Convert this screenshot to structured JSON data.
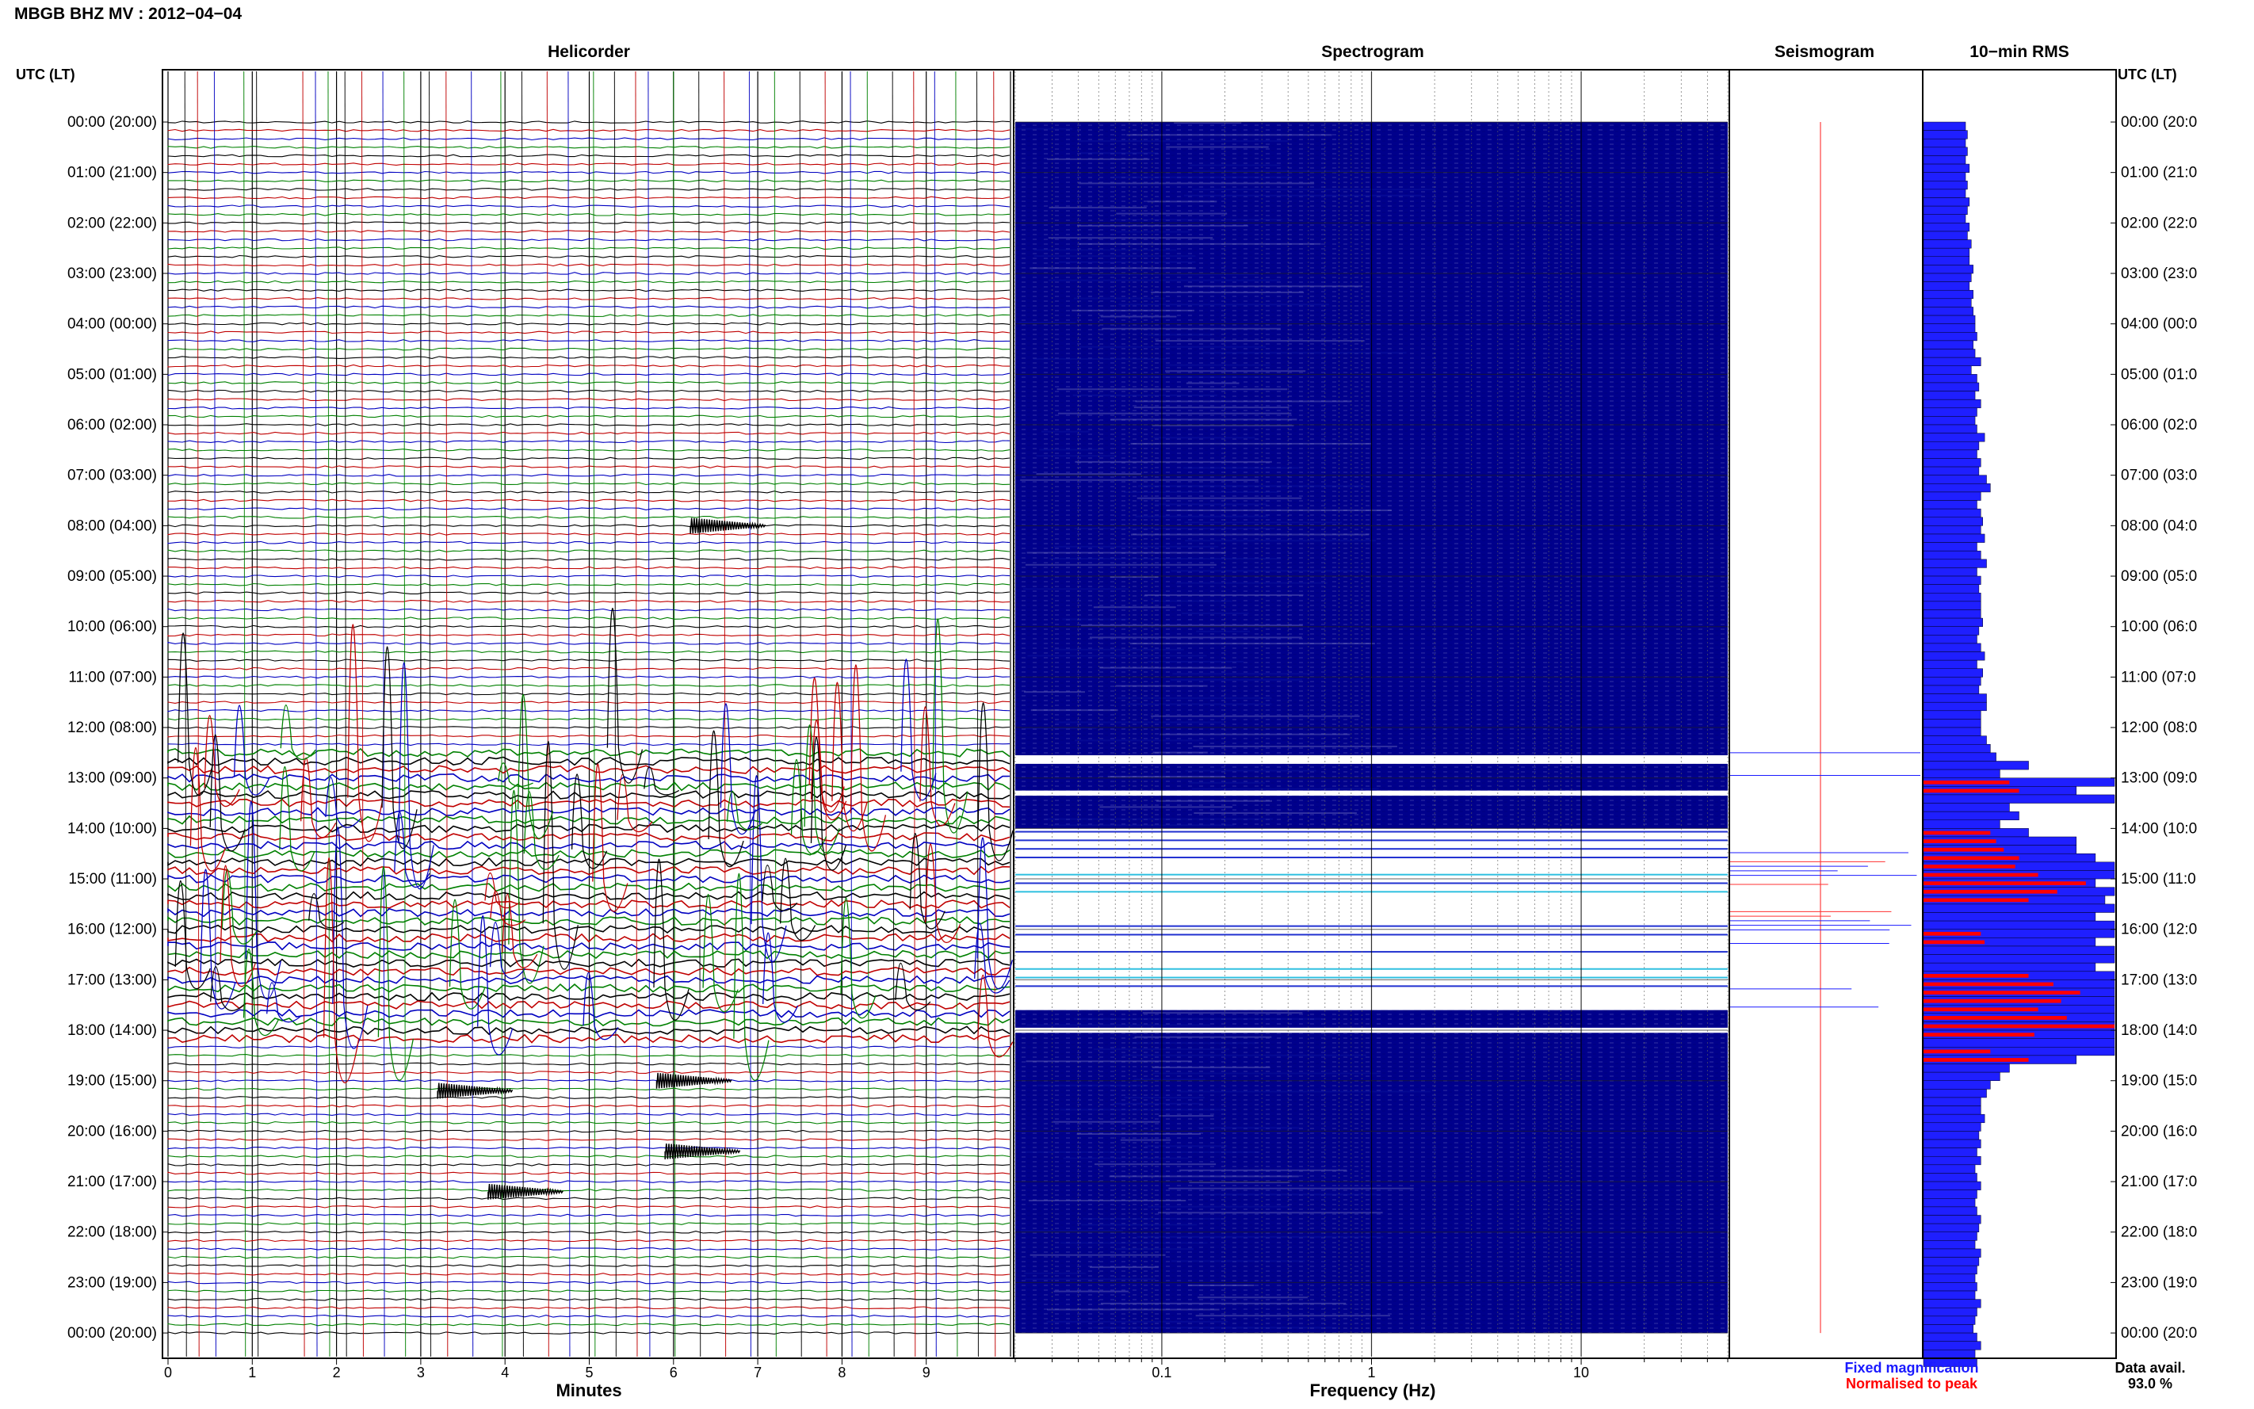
{
  "header": {
    "station_title": "MBGB BHZ MV : 2012−04−04"
  },
  "panels": {
    "helicorder": "Helicorder",
    "spectrogram": "Spectrogram",
    "seismogram": "Seismogram",
    "rms": "10−min RMS"
  },
  "axes": {
    "time_label_left": "UTC (LT)",
    "time_label_right": "UTC (LT)",
    "helicorder_xlabel": "Minutes",
    "spectrogram_xlabel": "Frequency (Hz)"
  },
  "legend": {
    "fixed_magnification": "Fixed magnification",
    "normalised_to_peak": "Normalised to peak",
    "data_avail_label": "Data avail.",
    "data_avail_value": "93.0 %"
  },
  "colors": {
    "trace_cycle": [
      "#000000",
      "#c00000",
      "#0000c0",
      "#008000"
    ],
    "rms_fixed": "#1f1fff",
    "rms_normalised": "#ff0000",
    "legend_blue": "#1a1aff",
    "legend_red": "#ff0000"
  },
  "chart_data": {
    "type": "heatmap",
    "time_ticks": [
      "00:00 (20:00)",
      "01:00 (21:00)",
      "02:00 (22:00)",
      "03:00 (23:00)",
      "04:00 (00:00)",
      "05:00 (01:00)",
      "06:00 (02:00)",
      "07:00 (03:00)",
      "08:00 (04:00)",
      "09:00 (05:00)",
      "10:00 (06:00)",
      "11:00 (07:00)",
      "12:00 (08:00)",
      "13:00 (09:00)",
      "14:00 (10:00)",
      "15:00 (11:00)",
      "16:00 (12:00)",
      "17:00 (13:00)",
      "18:00 (14:00)",
      "19:00 (15:00)",
      "20:00 (16:00)",
      "21:00 (17:00)",
      "22:00 (18:00)",
      "23:00 (19:00)",
      "00:00 (20:00)"
    ],
    "time_ticks_right": [
      "00:00 (20:0",
      "01:00 (21:0",
      "02:00 (22:0",
      "03:00 (23:0",
      "04:00 (00:0",
      "05:00 (01:0",
      "06:00 (02:0",
      "07:00 (03:0",
      "08:00 (04:0",
      "09:00 (05:0",
      "10:00 (06:0",
      "11:00 (07:0",
      "12:00 (08:0",
      "13:00 (09:0",
      "14:00 (10:0",
      "15:00 (11:0",
      "16:00 (12:0",
      "17:00 (13:0",
      "18:00 (14:0",
      "19:00 (15:0",
      "20:00 (16:0",
      "21:00 (17:0",
      "22:00 (18:0",
      "23:00 (19:0",
      "00:00 (20:0"
    ],
    "helicorder": {
      "xlim": [
        0,
        10
      ],
      "xticks": [
        "0",
        "1",
        "2",
        "3",
        "4",
        "5",
        "6",
        "7",
        "8",
        "9"
      ],
      "lines_per_hour": 6
    },
    "spectrogram": {
      "xscale": "log",
      "xlim": [
        0.02,
        50
      ],
      "xticks": [
        {
          "value": 0.1,
          "label": "0.1"
        },
        {
          "value": 1,
          "label": "1"
        },
        {
          "value": 10,
          "label": "10"
        }
      ]
    },
    "gap_hours": [
      [
        12.55,
        12.72
      ],
      [
        13.25,
        13.35
      ],
      [
        14.0,
        17.6
      ],
      [
        17.95,
        18.05
      ]
    ],
    "rms_fixed": [
      0.22,
      0.23,
      0.22,
      0.23,
      0.22,
      0.24,
      0.22,
      0.23,
      0.22,
      0.24,
      0.23,
      0.22,
      0.24,
      0.23,
      0.25,
      0.24,
      0.24,
      0.26,
      0.25,
      0.24,
      0.26,
      0.25,
      0.26,
      0.27,
      0.27,
      0.28,
      0.26,
      0.27,
      0.3,
      0.25,
      0.28,
      0.29,
      0.27,
      0.3,
      0.28,
      0.27,
      0.28,
      0.32,
      0.29,
      0.28,
      0.3,
      0.29,
      0.33,
      0.35,
      0.3,
      0.28,
      0.3,
      0.31,
      0.3,
      0.32,
      0.28,
      0.3,
      0.33,
      0.28,
      0.3,
      0.29,
      0.3,
      0.3,
      0.3,
      0.31,
      0.29,
      0.28,
      0.3,
      0.32,
      0.28,
      0.31,
      0.3,
      0.29,
      0.33,
      0.33,
      0.3,
      0.3,
      0.3,
      0.33,
      0.35,
      0.38,
      0.55,
      0.4,
      1.0,
      0.8,
      1.0,
      0.45,
      0.5,
      0.4,
      0.55,
      0.8,
      0.8,
      0.9,
      1.0,
      1.0,
      0.9,
      1.0,
      0.95,
      1.0,
      0.9,
      1.0,
      1.0,
      0.9,
      1.0,
      1.0,
      0.9,
      1.0,
      1.0,
      1.0,
      1.0,
      1.0,
      1.0,
      1.0,
      1.0,
      1.0,
      1.0,
      0.8,
      0.45,
      0.4,
      0.35,
      0.33,
      0.3,
      0.3,
      0.32,
      0.3,
      0.29,
      0.3,
      0.28,
      0.3,
      0.27,
      0.28,
      0.3,
      0.28,
      0.27,
      0.28,
      0.3,
      0.29,
      0.28,
      0.27,
      0.3,
      0.29,
      0.28,
      0.27,
      0.28,
      0.27,
      0.3,
      0.28,
      0.27,
      0.26,
      0.28,
      0.3,
      0.27,
      0.28
    ],
    "rms_normalised": [
      0,
      0,
      0,
      0,
      0,
      0,
      0,
      0,
      0,
      0,
      0,
      0,
      0,
      0,
      0,
      0,
      0,
      0,
      0,
      0,
      0,
      0,
      0,
      0,
      0,
      0,
      0,
      0,
      0,
      0,
      0,
      0,
      0,
      0,
      0,
      0,
      0,
      0,
      0,
      0,
      0,
      0,
      0,
      0,
      0,
      0,
      0,
      0,
      0,
      0,
      0,
      0,
      0,
      0,
      0,
      0,
      0,
      0,
      0,
      0,
      0,
      0,
      0,
      0,
      0,
      0,
      0,
      0,
      0,
      0,
      0,
      0,
      0,
      0,
      0,
      0,
      0,
      0,
      0.45,
      0.5,
      0,
      0,
      0,
      0,
      0.35,
      0.38,
      0.42,
      0.5,
      0.48,
      0.6,
      0.85,
      0.7,
      0.55,
      0,
      0,
      0,
      0.3,
      0.32,
      0,
      0,
      0,
      0.55,
      0.68,
      0.82,
      0.72,
      0.6,
      0.75,
      1.0,
      0.58,
      0,
      0.35,
      0.55,
      0,
      0,
      0,
      0,
      0,
      0,
      0,
      0,
      0,
      0,
      0,
      0,
      0,
      0,
      0,
      0,
      0,
      0,
      0,
      0,
      0,
      0,
      0,
      0,
      0,
      0,
      0,
      0,
      0,
      0,
      0,
      0,
      0,
      0
    ]
  }
}
